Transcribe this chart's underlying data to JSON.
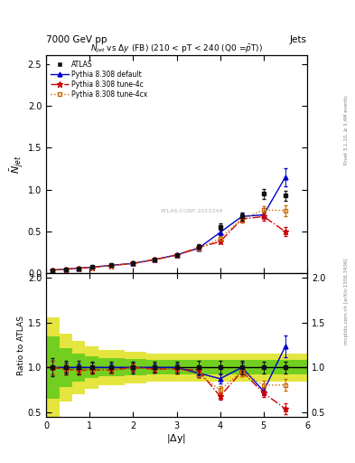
{
  "title_left": "7000 GeV pp",
  "title_right": "Jets",
  "plot_title": "$N_{jet}$ vs $\\Delta y$ (FB) (210 < pT < 240 (Q0 =$\\bar{p}$T))",
  "ylabel_main": "$\\bar{N}_{jet}$",
  "ylabel_ratio": "Ratio to ATLAS",
  "xlabel": "|$\\Delta$y|",
  "watermark": "ATLAS-CONF-2012244",
  "rivet_text": "Rivet 3.1.10, ≥ 3.4M events",
  "mcplots_text": "mcplots.cern.ch [arXiv:1306.3436]",
  "x_pts": [
    0.15,
    0.45,
    0.75,
    1.05,
    1.5,
    2.0,
    2.5,
    3.0,
    3.5,
    4.0,
    4.5,
    5.0,
    5.5
  ],
  "atlas_y": [
    0.04,
    0.052,
    0.063,
    0.075,
    0.098,
    0.12,
    0.168,
    0.222,
    0.32,
    0.56,
    0.68,
    0.95,
    0.93
  ],
  "atlas_ye": [
    0.004,
    0.004,
    0.005,
    0.005,
    0.006,
    0.008,
    0.01,
    0.014,
    0.025,
    0.04,
    0.05,
    0.06,
    0.06
  ],
  "def_y": [
    0.04,
    0.052,
    0.063,
    0.075,
    0.098,
    0.12,
    0.168,
    0.222,
    0.3,
    0.49,
    0.68,
    0.7,
    1.15
  ],
  "def_ye": [
    0.003,
    0.003,
    0.003,
    0.004,
    0.004,
    0.006,
    0.008,
    0.01,
    0.014,
    0.028,
    0.038,
    0.04,
    0.11
  ],
  "c4_y": [
    0.04,
    0.051,
    0.061,
    0.073,
    0.095,
    0.12,
    0.165,
    0.218,
    0.31,
    0.38,
    0.65,
    0.68,
    0.5
  ],
  "c4_ye": [
    0.003,
    0.003,
    0.003,
    0.003,
    0.004,
    0.005,
    0.007,
    0.01,
    0.015,
    0.024,
    0.038,
    0.048,
    0.055
  ],
  "c4x_y": [
    0.04,
    0.051,
    0.061,
    0.073,
    0.095,
    0.12,
    0.165,
    0.218,
    0.295,
    0.42,
    0.65,
    0.76,
    0.75
  ],
  "c4x_ye": [
    0.003,
    0.003,
    0.003,
    0.003,
    0.004,
    0.005,
    0.007,
    0.01,
    0.014,
    0.024,
    0.038,
    0.048,
    0.065
  ],
  "ylim_main": [
    0.0,
    2.6
  ],
  "ylim_ratio": [
    0.45,
    2.05
  ],
  "xlim": [
    0.0,
    6.0
  ],
  "color_atlas": "#111111",
  "color_default": "#0000cc",
  "color_4c": "#cc0000",
  "color_4cx": "#cc6600",
  "band_x_edges": [
    0.0,
    0.3,
    0.6,
    0.9,
    1.2,
    1.8,
    2.3,
    2.8,
    3.3,
    3.8,
    4.3,
    4.8,
    5.3,
    6.0
  ],
  "yellow_lo": [
    0.45,
    0.62,
    0.7,
    0.76,
    0.8,
    0.82,
    0.84,
    0.84,
    0.84,
    0.84,
    0.84,
    0.84,
    0.84
  ],
  "yellow_hi": [
    1.56,
    1.38,
    1.3,
    1.24,
    1.2,
    1.18,
    1.16,
    1.16,
    1.16,
    1.16,
    1.16,
    1.16,
    1.16
  ],
  "green_lo": [
    0.65,
    0.78,
    0.84,
    0.88,
    0.9,
    0.91,
    0.92,
    0.92,
    0.92,
    0.92,
    0.92,
    0.92,
    0.92
  ],
  "green_hi": [
    1.35,
    1.22,
    1.16,
    1.12,
    1.1,
    1.09,
    1.08,
    1.08,
    1.08,
    1.08,
    1.08,
    1.08,
    1.08
  ]
}
